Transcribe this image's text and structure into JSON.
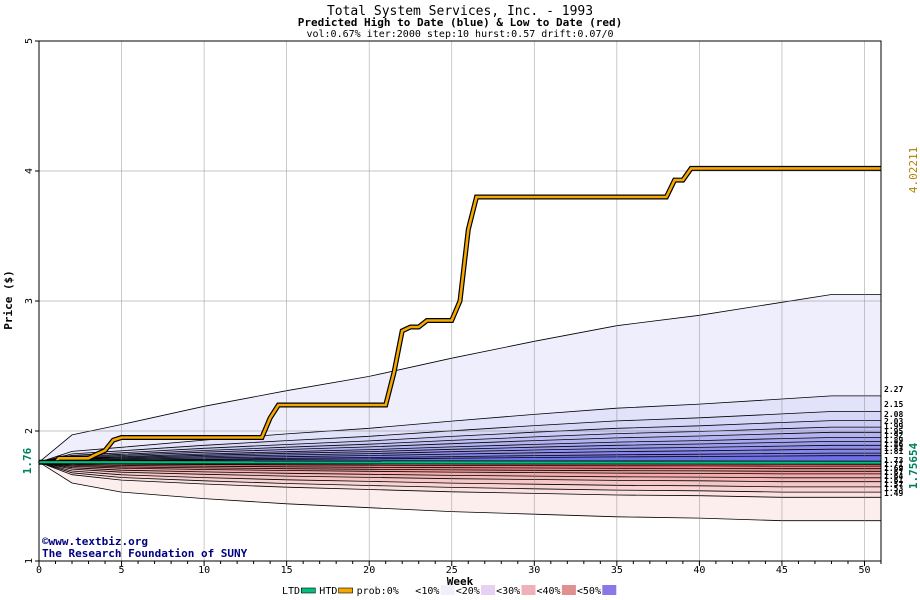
{
  "chart_data": {
    "type": "line",
    "title": "Total System Services, Inc. - 1993",
    "subtitle": "Predicted High to Date (blue) &  Low to Date (red)",
    "params": "vol:0.67% iter:2000 step:10 hurst:0.57 drift:0.07/0",
    "xlabel": "Week",
    "ylabel": "Price ($)",
    "xlim": [
      0,
      51
    ],
    "ylim": [
      1,
      5
    ],
    "x_ticks": [
      0,
      5,
      10,
      15,
      20,
      25,
      30,
      35,
      40,
      45,
      50
    ],
    "y_ticks": [
      1,
      2,
      3,
      4,
      5
    ],
    "grid": true,
    "start_price": 1.76,
    "start_label": "1.76",
    "htd_final": 4.02211,
    "htd_label": "4.02211",
    "ltd_final": 1.75654,
    "ltd_label": "1.75654",
    "colors": {
      "htd": "#f5a800",
      "ltd": "#00c080",
      "htd_label": "#b08000",
      "ltd_label": "#008060",
      "band_high_light": "#eeeefc",
      "band_high_dark": "#6f6fe8",
      "band_low_light": "#fdeeee",
      "band_low_dark": "#ec7878",
      "grid": "#808080",
      "credit": "#000080"
    },
    "series": [
      {
        "name": "HTD",
        "x": [
          0,
          1,
          1.2,
          3,
          3.3,
          4,
          4.5,
          5,
          13.5,
          14,
          14.5,
          21,
          21.5,
          22,
          22.5,
          23,
          23.5,
          25,
          25.5,
          26,
          26.5,
          38,
          38.5,
          39,
          39.5,
          51
        ],
        "y": [
          1.76,
          1.76,
          1.79,
          1.79,
          1.81,
          1.85,
          1.93,
          1.95,
          1.95,
          2.1,
          2.2,
          2.2,
          2.45,
          2.77,
          2.8,
          2.8,
          2.85,
          2.85,
          3.0,
          3.55,
          3.8,
          3.8,
          3.93,
          3.93,
          4.02,
          4.02
        ]
      },
      {
        "name": "LTD",
        "x": [
          0,
          51
        ],
        "y": [
          1.76,
          1.756
        ]
      }
    ],
    "high_bands": {
      "x": [
        0,
        2,
        5,
        10,
        15,
        20,
        25,
        30,
        35,
        40,
        45,
        48,
        51
      ],
      "max": [
        1.76,
        1.97,
        2.05,
        2.19,
        2.31,
        2.42,
        2.56,
        2.69,
        2.81,
        2.89,
        2.99,
        3.05,
        3.05
      ],
      "ends": [
        2.27,
        2.15,
        2.08,
        2.03,
        1.99,
        1.95,
        1.92,
        1.89,
        1.86,
        1.83,
        1.81
      ]
    },
    "low_bands": {
      "x": [
        0,
        2,
        5,
        10,
        15,
        20,
        25,
        30,
        35,
        40,
        45,
        48,
        51
      ],
      "min": [
        1.76,
        1.6,
        1.53,
        1.48,
        1.44,
        1.41,
        1.38,
        1.36,
        1.34,
        1.33,
        1.31,
        1.31,
        1.31
      ],
      "ends": [
        1.73,
        1.71,
        1.69,
        1.67,
        1.64,
        1.61,
        1.57,
        1.53,
        1.49
      ]
    },
    "end_labels_high": [
      "2.27",
      "2.15",
      "2.08",
      "2.03",
      "1.99",
      "1.95",
      "1.92",
      "1.89",
      "1.86",
      "1.83",
      "1.81"
    ],
    "end_labels_low": [
      "1.73",
      "1.71",
      "1.69",
      "1.67",
      "1.64",
      "1.61",
      "1.57",
      "1.53",
      "1.49"
    ],
    "legend": {
      "items": [
        "LTD",
        "HTD",
        "prob:0%",
        "<10%",
        "<20%",
        "<30%",
        "<40%",
        "<50%"
      ],
      "placement": "bottom"
    },
    "credits": [
      "©www.textbiz.org",
      "The Research Foundation of SUNY"
    ]
  }
}
